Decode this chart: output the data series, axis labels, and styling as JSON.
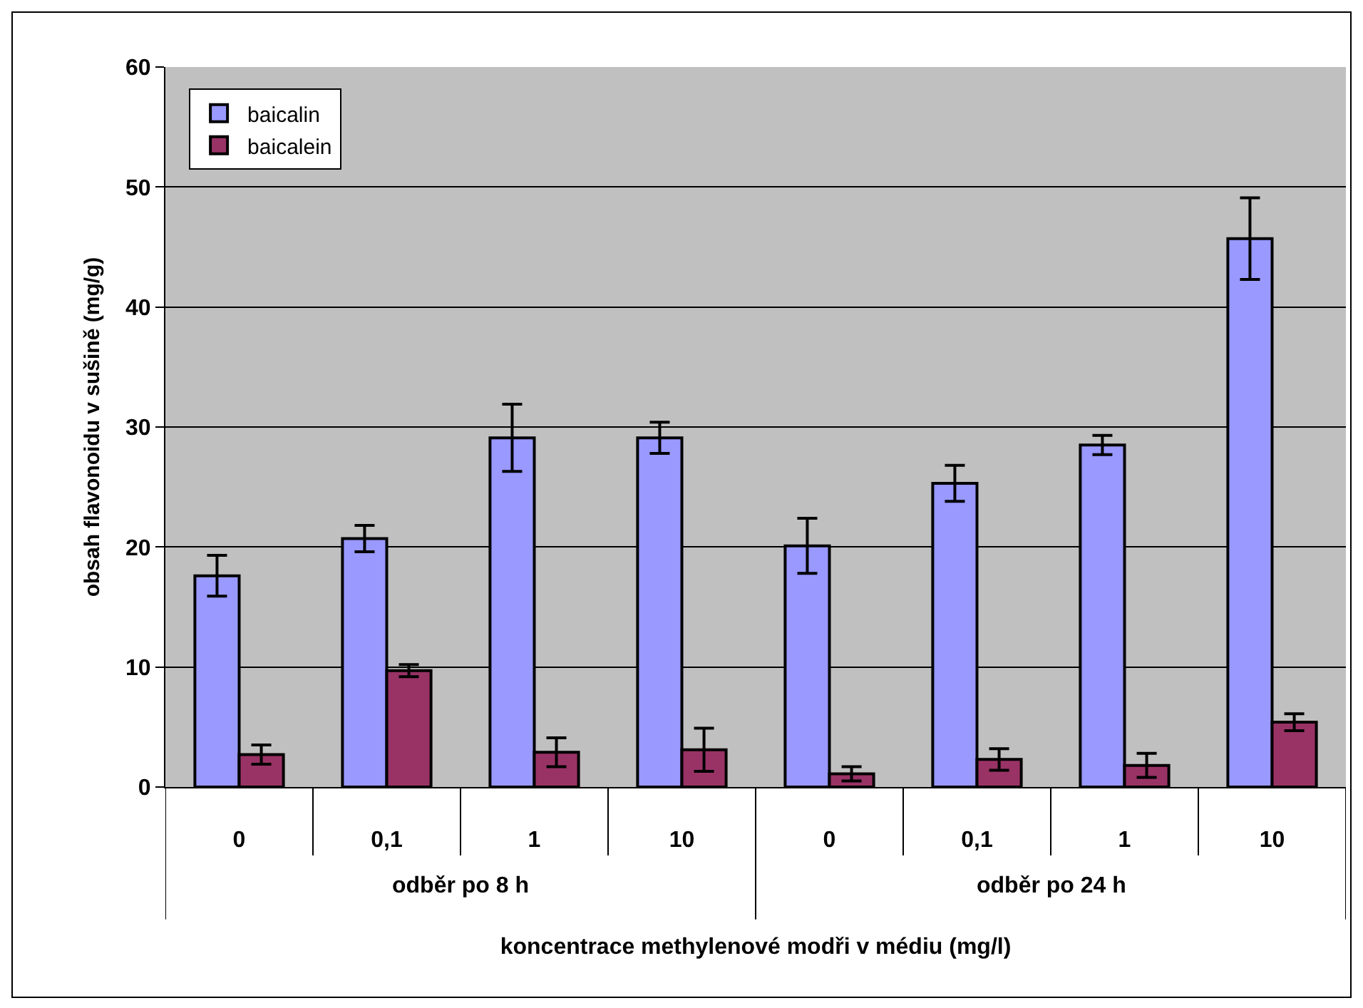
{
  "chart_data": {
    "type": "bar",
    "ylabel": "obsah flavonoidu v sušině (mg/g)",
    "xlabel": "koncentrace methylenové modři v médiu (mg/l)",
    "categories": [
      "0",
      "0,1",
      "1",
      "10",
      "0",
      "0,1",
      "1",
      "10"
    ],
    "annotations": [
      "odběr po 8 h",
      "odběr po 24 h"
    ],
    "series": [
      {
        "name": "baicalin",
        "color": "#9999ff",
        "values": [
          17.6,
          20.7,
          29.1,
          29.1,
          20.1,
          25.3,
          28.5,
          45.7
        ],
        "errors": [
          1.7,
          1.1,
          2.8,
          1.3,
          2.3,
          1.5,
          0.8,
          3.4
        ]
      },
      {
        "name": "baicalein",
        "color": "#993366",
        "values": [
          2.7,
          9.7,
          2.9,
          3.1,
          1.1,
          2.3,
          1.8,
          5.4
        ],
        "errors": [
          0.8,
          0.5,
          1.2,
          1.8,
          0.6,
          0.9,
          1.0,
          0.7
        ]
      }
    ],
    "ylim": [
      0,
      60
    ],
    "yticks": [
      0,
      10,
      20,
      30,
      40,
      50,
      60
    ],
    "grid": "y",
    "legend": "top left"
  }
}
